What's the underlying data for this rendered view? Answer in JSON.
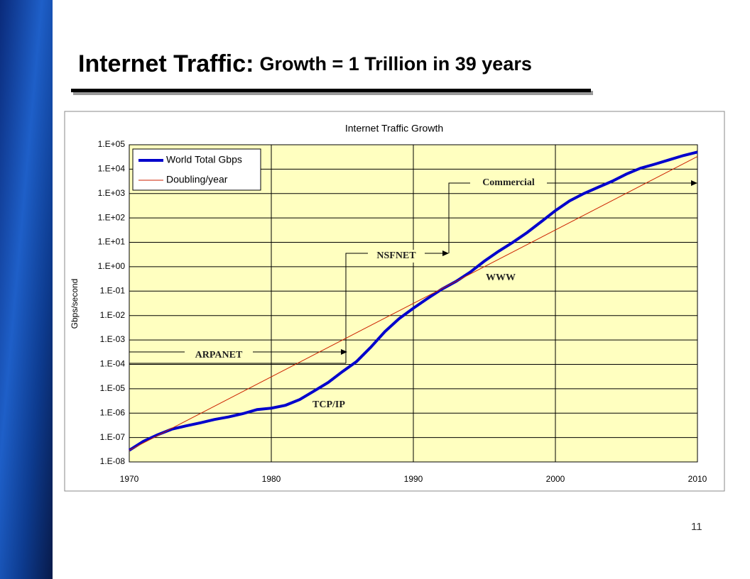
{
  "slide": {
    "title_main": "Internet Traffic:",
    "title_sub": "Growth = 1 Trillion in 39 years",
    "page_number": "11"
  },
  "chart_data": {
    "type": "line",
    "title": "Internet Traffic Growth",
    "y_label": "Gbps/second",
    "log_y": true,
    "grid": true,
    "legend": "upper left",
    "x": [
      1970,
      1971,
      1972,
      1973,
      1974,
      1975,
      1976,
      1977,
      1978,
      1979,
      1980,
      1981,
      1982,
      1983,
      1984,
      1985,
      1986,
      1987,
      1988,
      1989,
      1990,
      1991,
      1992,
      1993,
      1994,
      1995,
      1996,
      1997,
      1998,
      1999,
      2000,
      2001,
      2002,
      2003,
      2004,
      2005,
      2006,
      2007,
      2008,
      2009,
      2010
    ],
    "series": [
      {
        "name": "World Total Gbps",
        "color": "#0000cc",
        "values": [
          3e-08,
          7e-08,
          1.3e-07,
          2.2e-07,
          3e-07,
          4e-07,
          5.5e-07,
          7e-07,
          9.5e-07,
          1.4e-06,
          1.6e-06,
          2.1e-06,
          3.6e-06,
          8e-06,
          1.8e-05,
          5e-05,
          0.00013,
          0.0005,
          0.0022,
          0.0075,
          0.02,
          0.05,
          0.12,
          0.25,
          0.6,
          1.7,
          4.3,
          10,
          25,
          70,
          200,
          500,
          1000,
          1800,
          3200,
          6300,
          11000,
          16000,
          24000,
          36000,
          50000
        ]
      },
      {
        "name": "Doubling/year",
        "color": "#cc2200",
        "x": [
          1970,
          2010
        ],
        "values": [
          3e-08,
          33000
        ]
      }
    ],
    "annotations": [
      "ARPANET",
      "NSFNET",
      "Commercial",
      "WWW",
      "TCP/IP"
    ],
    "xlim": [
      1970,
      2010
    ],
    "xticks": [
      1970,
      1980,
      1990,
      2000,
      2010
    ],
    "ylim": [
      1e-08,
      100000
    ],
    "yticks": [
      {
        "value": 1e-08,
        "label": "1.E-08"
      },
      {
        "value": 1e-07,
        "label": "1.E-07"
      },
      {
        "value": 1e-06,
        "label": "1.E-06"
      },
      {
        "value": 1e-05,
        "label": "1.E-05"
      },
      {
        "value": 0.0001,
        "label": "1.E-04"
      },
      {
        "value": 0.001,
        "label": "1.E-03"
      },
      {
        "value": 0.01,
        "label": "1.E-02"
      },
      {
        "value": 0.1,
        "label": "1.E-01"
      },
      {
        "value": 1,
        "label": "1.E+00"
      },
      {
        "value": 10,
        "label": "1.E+01"
      },
      {
        "value": 100,
        "label": "1.E+02"
      },
      {
        "value": 1000,
        "label": "1.E+03"
      },
      {
        "value": 10000,
        "label": "1.E+04"
      },
      {
        "value": 100000,
        "label": "1.E+05"
      }
    ]
  }
}
